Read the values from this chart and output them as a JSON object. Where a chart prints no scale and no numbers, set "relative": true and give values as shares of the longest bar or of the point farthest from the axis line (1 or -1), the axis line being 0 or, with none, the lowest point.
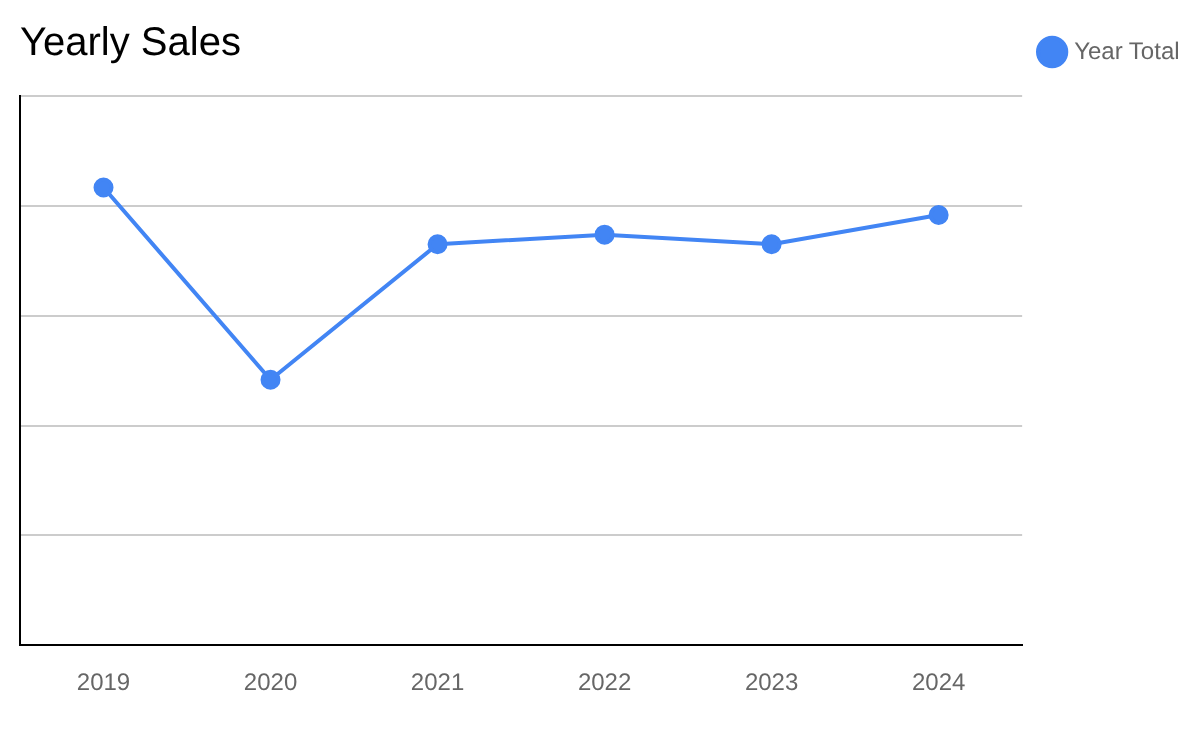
{
  "chart_data": {
    "type": "line",
    "title": "Yearly Sales",
    "categories": [
      "2019",
      "2020",
      "2021",
      "2022",
      "2023",
      "2024"
    ],
    "relative": true,
    "series": [
      {
        "name": "Year Total",
        "color": "#4285f4",
        "values": [
          1,
          0.58,
          0.876,
          0.897,
          0.876,
          0.94
        ]
      }
    ],
    "grid": "y",
    "legend": "top right",
    "marker": "circle",
    "line_style": "solid"
  }
}
